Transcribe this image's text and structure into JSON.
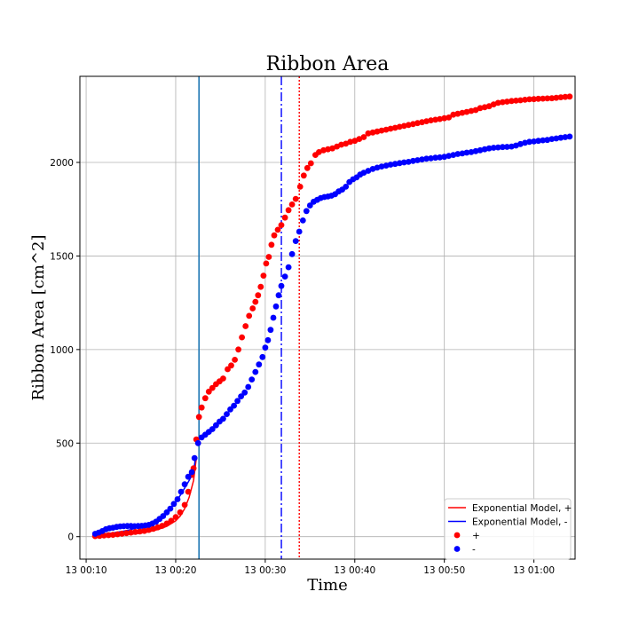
{
  "chart_data": {
    "type": "line",
    "title": "Ribbon Area",
    "xlabel": "Time",
    "ylabel": "Ribbon Area [cm^2]",
    "x_unit": "minutes after 13 00:00",
    "xlim": [
      9.3,
      64.6
    ],
    "ylim": [
      -120,
      2460
    ],
    "x_ticks": [
      {
        "value": 10,
        "label": "13 00:10"
      },
      {
        "value": 20,
        "label": "13 00:20"
      },
      {
        "value": 30,
        "label": "13 00:30"
      },
      {
        "value": 40,
        "label": "13 00:40"
      },
      {
        "value": 50,
        "label": "13 00:50"
      },
      {
        "value": 60,
        "label": "13 01:00"
      }
    ],
    "y_ticks": [
      {
        "value": 0,
        "label": "0"
      },
      {
        "value": 500,
        "label": "500"
      },
      {
        "value": 1000,
        "label": "1000"
      },
      {
        "value": 1500,
        "label": "1500"
      },
      {
        "value": 2000,
        "label": "2000"
      }
    ],
    "grid": true,
    "legend_position": "bottom-right",
    "series": [
      {
        "name": "+",
        "kind": "scatter",
        "color": "#ff0000",
        "points": [
          [
            11.0,
            3
          ],
          [
            11.5,
            4
          ],
          [
            12.0,
            6
          ],
          [
            12.5,
            8
          ],
          [
            13.0,
            10
          ],
          [
            13.5,
            13
          ],
          [
            14.0,
            16
          ],
          [
            14.5,
            19
          ],
          [
            15.0,
            22
          ],
          [
            15.5,
            25
          ],
          [
            16.0,
            28
          ],
          [
            16.5,
            31
          ],
          [
            17.0,
            36
          ],
          [
            17.5,
            42
          ],
          [
            18.0,
            50
          ],
          [
            18.5,
            58
          ],
          [
            19.0,
            70
          ],
          [
            19.5,
            85
          ],
          [
            20.0,
            105
          ],
          [
            20.5,
            130
          ],
          [
            21.0,
            170
          ],
          [
            21.4,
            240
          ],
          [
            21.8,
            330
          ],
          [
            22.0,
            365
          ],
          [
            22.3,
            520
          ],
          [
            22.6,
            640
          ],
          [
            22.9,
            690
          ],
          [
            23.3,
            740
          ],
          [
            23.7,
            775
          ],
          [
            24.1,
            795
          ],
          [
            24.5,
            815
          ],
          [
            24.9,
            830
          ],
          [
            25.3,
            845
          ],
          [
            25.8,
            895
          ],
          [
            26.2,
            915
          ],
          [
            26.6,
            945
          ],
          [
            27.0,
            1000
          ],
          [
            27.4,
            1065
          ],
          [
            27.8,
            1125
          ],
          [
            28.2,
            1180
          ],
          [
            28.6,
            1220
          ],
          [
            28.9,
            1255
          ],
          [
            29.2,
            1290
          ],
          [
            29.5,
            1335
          ],
          [
            29.8,
            1395
          ],
          [
            30.1,
            1460
          ],
          [
            30.4,
            1495
          ],
          [
            30.7,
            1560
          ],
          [
            31.0,
            1610
          ],
          [
            31.4,
            1640
          ],
          [
            31.8,
            1665
          ],
          [
            32.2,
            1705
          ],
          [
            32.6,
            1745
          ],
          [
            33.0,
            1775
          ],
          [
            33.4,
            1805
          ],
          [
            33.9,
            1870
          ],
          [
            34.3,
            1930
          ],
          [
            34.7,
            1970
          ],
          [
            35.1,
            1995
          ],
          [
            35.6,
            2040
          ],
          [
            36.0,
            2055
          ],
          [
            36.5,
            2065
          ],
          [
            37.0,
            2070
          ],
          [
            37.5,
            2075
          ],
          [
            38.0,
            2085
          ],
          [
            38.5,
            2095
          ],
          [
            39.0,
            2100
          ],
          [
            39.5,
            2110
          ],
          [
            40.0,
            2115
          ],
          [
            40.5,
            2125
          ],
          [
            41.0,
            2135
          ],
          [
            41.5,
            2155
          ],
          [
            42.0,
            2160
          ],
          [
            42.5,
            2165
          ],
          [
            43.0,
            2170
          ],
          [
            43.5,
            2175
          ],
          [
            44.0,
            2180
          ],
          [
            44.5,
            2185
          ],
          [
            45.0,
            2190
          ],
          [
            45.5,
            2195
          ],
          [
            46.0,
            2200
          ],
          [
            46.5,
            2205
          ],
          [
            47.0,
            2210
          ],
          [
            47.5,
            2215
          ],
          [
            48.0,
            2220
          ],
          [
            48.5,
            2225
          ],
          [
            49.0,
            2228
          ],
          [
            49.5,
            2232
          ],
          [
            50.0,
            2236
          ],
          [
            50.5,
            2240
          ],
          [
            51.0,
            2255
          ],
          [
            51.5,
            2260
          ],
          [
            52.0,
            2265
          ],
          [
            52.5,
            2270
          ],
          [
            53.0,
            2275
          ],
          [
            53.5,
            2280
          ],
          [
            54.0,
            2290
          ],
          [
            54.5,
            2295
          ],
          [
            55.0,
            2300
          ],
          [
            55.5,
            2310
          ],
          [
            56.0,
            2318
          ],
          [
            56.5,
            2322
          ],
          [
            57.0,
            2325
          ],
          [
            57.5,
            2328
          ],
          [
            58.0,
            2330
          ],
          [
            58.5,
            2332
          ],
          [
            59.0,
            2335
          ],
          [
            59.5,
            2337
          ],
          [
            60.0,
            2338
          ],
          [
            60.5,
            2340
          ],
          [
            61.0,
            2341
          ],
          [
            61.5,
            2342
          ],
          [
            62.0,
            2343
          ],
          [
            62.5,
            2345
          ],
          [
            63.0,
            2348
          ],
          [
            63.5,
            2350
          ],
          [
            64.0,
            2352
          ]
        ]
      },
      {
        "name": "-",
        "kind": "scatter",
        "color": "#0000ff",
        "points": [
          [
            11.0,
            15
          ],
          [
            11.4,
            22
          ],
          [
            11.8,
            30
          ],
          [
            12.2,
            40
          ],
          [
            12.6,
            45
          ],
          [
            13.0,
            48
          ],
          [
            13.4,
            52
          ],
          [
            13.8,
            55
          ],
          [
            14.2,
            56
          ],
          [
            14.6,
            57
          ],
          [
            15.0,
            57
          ],
          [
            15.4,
            56
          ],
          [
            15.8,
            57
          ],
          [
            16.2,
            58
          ],
          [
            16.6,
            60
          ],
          [
            17.0,
            63
          ],
          [
            17.4,
            70
          ],
          [
            17.8,
            80
          ],
          [
            18.2,
            95
          ],
          [
            18.6,
            110
          ],
          [
            19.0,
            130
          ],
          [
            19.4,
            150
          ],
          [
            19.8,
            175
          ],
          [
            20.2,
            200
          ],
          [
            20.6,
            240
          ],
          [
            21.0,
            280
          ],
          [
            21.4,
            320
          ],
          [
            21.8,
            345
          ],
          [
            22.1,
            420
          ],
          [
            22.5,
            500
          ],
          [
            22.9,
            530
          ],
          [
            23.3,
            545
          ],
          [
            23.7,
            560
          ],
          [
            24.1,
            575
          ],
          [
            24.5,
            595
          ],
          [
            24.9,
            615
          ],
          [
            25.3,
            630
          ],
          [
            25.7,
            655
          ],
          [
            26.1,
            680
          ],
          [
            26.5,
            700
          ],
          [
            26.9,
            725
          ],
          [
            27.3,
            750
          ],
          [
            27.7,
            770
          ],
          [
            28.1,
            800
          ],
          [
            28.5,
            840
          ],
          [
            28.9,
            880
          ],
          [
            29.3,
            920
          ],
          [
            29.7,
            960
          ],
          [
            30.0,
            1010
          ],
          [
            30.3,
            1050
          ],
          [
            30.6,
            1105
          ],
          [
            30.9,
            1170
          ],
          [
            31.2,
            1230
          ],
          [
            31.5,
            1290
          ],
          [
            31.8,
            1340
          ],
          [
            32.2,
            1390
          ],
          [
            32.6,
            1440
          ],
          [
            33.0,
            1510
          ],
          [
            33.4,
            1580
          ],
          [
            33.8,
            1630
          ],
          [
            34.2,
            1690
          ],
          [
            34.6,
            1740
          ],
          [
            35.0,
            1770
          ],
          [
            35.4,
            1790
          ],
          [
            35.8,
            1800
          ],
          [
            36.2,
            1810
          ],
          [
            36.6,
            1815
          ],
          [
            37.0,
            1818
          ],
          [
            37.4,
            1822
          ],
          [
            37.8,
            1830
          ],
          [
            38.2,
            1845
          ],
          [
            38.6,
            1855
          ],
          [
            39.0,
            1870
          ],
          [
            39.4,
            1895
          ],
          [
            39.8,
            1910
          ],
          [
            40.2,
            1920
          ],
          [
            40.6,
            1935
          ],
          [
            41.0,
            1945
          ],
          [
            41.5,
            1955
          ],
          [
            42.0,
            1965
          ],
          [
            42.5,
            1972
          ],
          [
            43.0,
            1978
          ],
          [
            43.5,
            1983
          ],
          [
            44.0,
            1988
          ],
          [
            44.5,
            1992
          ],
          [
            45.0,
            1996
          ],
          [
            45.5,
            2000
          ],
          [
            46.0,
            2003
          ],
          [
            46.5,
            2008
          ],
          [
            47.0,
            2012
          ],
          [
            47.5,
            2016
          ],
          [
            48.0,
            2020
          ],
          [
            48.5,
            2022
          ],
          [
            49.0,
            2025
          ],
          [
            49.5,
            2027
          ],
          [
            50.0,
            2030
          ],
          [
            50.5,
            2035
          ],
          [
            51.0,
            2040
          ],
          [
            51.5,
            2045
          ],
          [
            52.0,
            2048
          ],
          [
            52.5,
            2052
          ],
          [
            53.0,
            2055
          ],
          [
            53.5,
            2060
          ],
          [
            54.0,
            2065
          ],
          [
            54.5,
            2070
          ],
          [
            55.0,
            2075
          ],
          [
            55.5,
            2078
          ],
          [
            56.0,
            2080
          ],
          [
            56.5,
            2082
          ],
          [
            57.0,
            2083
          ],
          [
            57.5,
            2085
          ],
          [
            58.0,
            2090
          ],
          [
            58.5,
            2098
          ],
          [
            59.0,
            2105
          ],
          [
            59.5,
            2110
          ],
          [
            60.0,
            2112
          ],
          [
            60.5,
            2115
          ],
          [
            61.0,
            2118
          ],
          [
            61.5,
            2120
          ],
          [
            62.0,
            2125
          ],
          [
            62.5,
            2128
          ],
          [
            63.0,
            2132
          ],
          [
            63.5,
            2135
          ],
          [
            64.0,
            2138
          ]
        ]
      },
      {
        "name": "Exponential Model, +",
        "kind": "line",
        "color": "#ff0000",
        "points": [
          [
            11.0,
            2
          ],
          [
            12.0,
            4
          ],
          [
            13.0,
            6
          ],
          [
            14.0,
            9
          ],
          [
            15.0,
            13
          ],
          [
            16.0,
            18
          ],
          [
            17.0,
            26
          ],
          [
            18.0,
            38
          ],
          [
            19.0,
            55
          ],
          [
            20.0,
            85
          ],
          [
            20.5,
            110
          ],
          [
            21.0,
            150
          ],
          [
            21.5,
            210
          ],
          [
            22.0,
            300
          ],
          [
            22.3,
            420
          ]
        ]
      },
      {
        "name": "Exponential Model, -",
        "kind": "line",
        "color": "#0000ff",
        "points": [
          [
            11.0,
            10
          ],
          [
            12.0,
            14
          ],
          [
            13.0,
            20
          ],
          [
            14.0,
            28
          ],
          [
            15.0,
            38
          ],
          [
            16.0,
            52
          ],
          [
            17.0,
            70
          ],
          [
            18.0,
            95
          ],
          [
            19.0,
            130
          ],
          [
            20.0,
            185
          ],
          [
            20.5,
            220
          ],
          [
            21.0,
            260
          ],
          [
            21.5,
            300
          ],
          [
            22.0,
            345
          ],
          [
            22.2,
            420
          ]
        ]
      }
    ],
    "vertical_lines": [
      {
        "x": 22.6,
        "color": "#1f77b4",
        "style": "solid"
      },
      {
        "x": 31.8,
        "color": "#0000ff",
        "style": "dashdot"
      },
      {
        "x": 33.8,
        "color": "#ff0000",
        "style": "dotted"
      }
    ],
    "legend": [
      {
        "label": "Exponential Model, +",
        "color": "#ff0000",
        "marker": "line"
      },
      {
        "label": "Exponential Model, -",
        "color": "#0000ff",
        "marker": "line"
      },
      {
        "label": "+",
        "color": "#ff0000",
        "marker": "dot"
      },
      {
        "label": "-",
        "color": "#0000ff",
        "marker": "dot"
      }
    ]
  }
}
